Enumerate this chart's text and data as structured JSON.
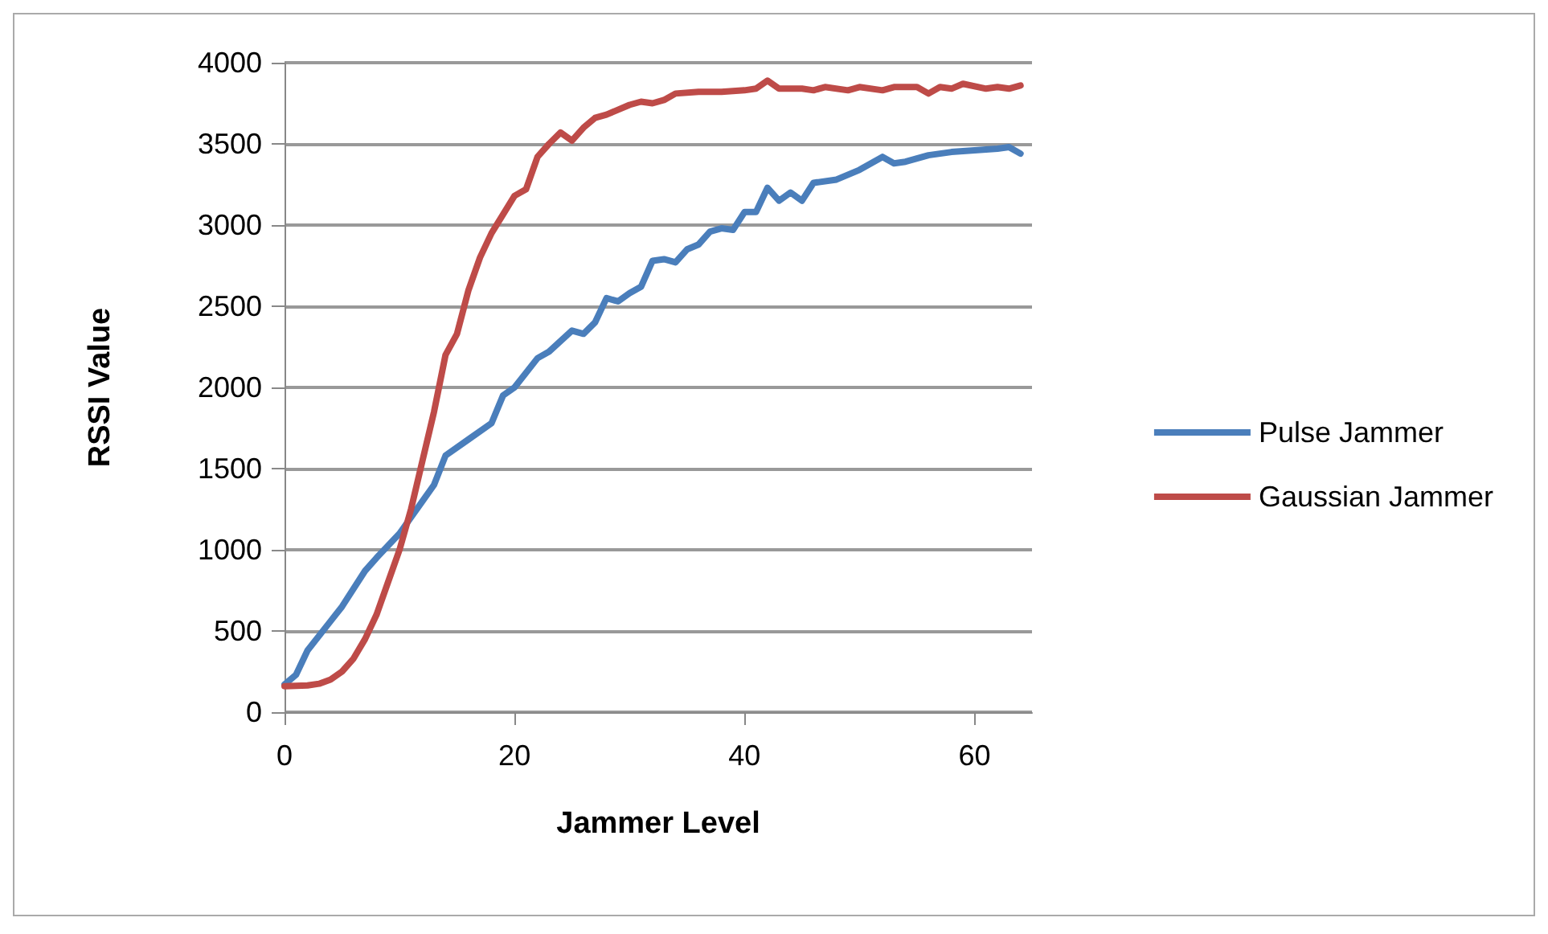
{
  "chart_data": {
    "type": "line",
    "xlabel": "Jammer Level",
    "ylabel": "RSSI Value",
    "xlim": [
      0,
      65
    ],
    "xticks": [
      0,
      20,
      40,
      60
    ],
    "ylim": [
      0,
      4000
    ],
    "yticks": [
      0,
      500,
      1000,
      1500,
      2000,
      2500,
      3000,
      3500,
      4000
    ],
    "grid": "y",
    "legend": "right",
    "marker": "none",
    "line_style": "solid",
    "series": [
      {
        "name": "Pulse Jammer",
        "color": "#4a7ebb",
        "x": [
          0,
          1,
          2,
          4,
          5,
          7,
          8,
          10,
          12,
          13,
          14,
          16,
          18,
          19,
          20,
          22,
          23,
          25,
          26,
          27,
          28,
          29,
          30,
          31,
          32,
          33,
          34,
          35,
          36,
          37,
          38,
          39,
          40,
          41,
          42,
          43,
          44,
          45,
          46,
          48,
          50,
          52,
          53,
          54,
          56,
          58,
          60,
          62,
          63,
          64
        ],
        "values": [
          170,
          230,
          380,
          560,
          650,
          870,
          950,
          1100,
          1300,
          1400,
          1580,
          1680,
          1780,
          1950,
          2000,
          2180,
          2220,
          2350,
          2330,
          2400,
          2550,
          2530,
          2580,
          2620,
          2780,
          2790,
          2770,
          2850,
          2880,
          2960,
          2980,
          2970,
          3080,
          3080,
          3230,
          3150,
          3200,
          3150,
          3260,
          3280,
          3340,
          3420,
          3380,
          3390,
          3430,
          3450,
          3460,
          3470,
          3480,
          3440
        ]
      },
      {
        "name": "Gaussian Jammer",
        "color": "#be4b48",
        "x": [
          0,
          2,
          3,
          4,
          5,
          6,
          7,
          8,
          9,
          10,
          11,
          12,
          13,
          14,
          15,
          16,
          17,
          18,
          20,
          21,
          22,
          23,
          24,
          25,
          26,
          27,
          28,
          30,
          31,
          32,
          33,
          34,
          36,
          38,
          40,
          41,
          42,
          43,
          45,
          46,
          47,
          49,
          50,
          52,
          53,
          55,
          56,
          57,
          58,
          59,
          61,
          62,
          63,
          64
        ],
        "values": [
          160,
          165,
          175,
          200,
          250,
          330,
          450,
          600,
          800,
          1000,
          1250,
          1550,
          1850,
          2200,
          2330,
          2600,
          2800,
          2950,
          3180,
          3220,
          3420,
          3500,
          3570,
          3520,
          3600,
          3660,
          3680,
          3740,
          3760,
          3750,
          3770,
          3810,
          3820,
          3820,
          3830,
          3840,
          3890,
          3840,
          3840,
          3830,
          3850,
          3830,
          3850,
          3830,
          3850,
          3850,
          3810,
          3850,
          3840,
          3870,
          3840,
          3850,
          3840,
          3860
        ]
      }
    ]
  }
}
